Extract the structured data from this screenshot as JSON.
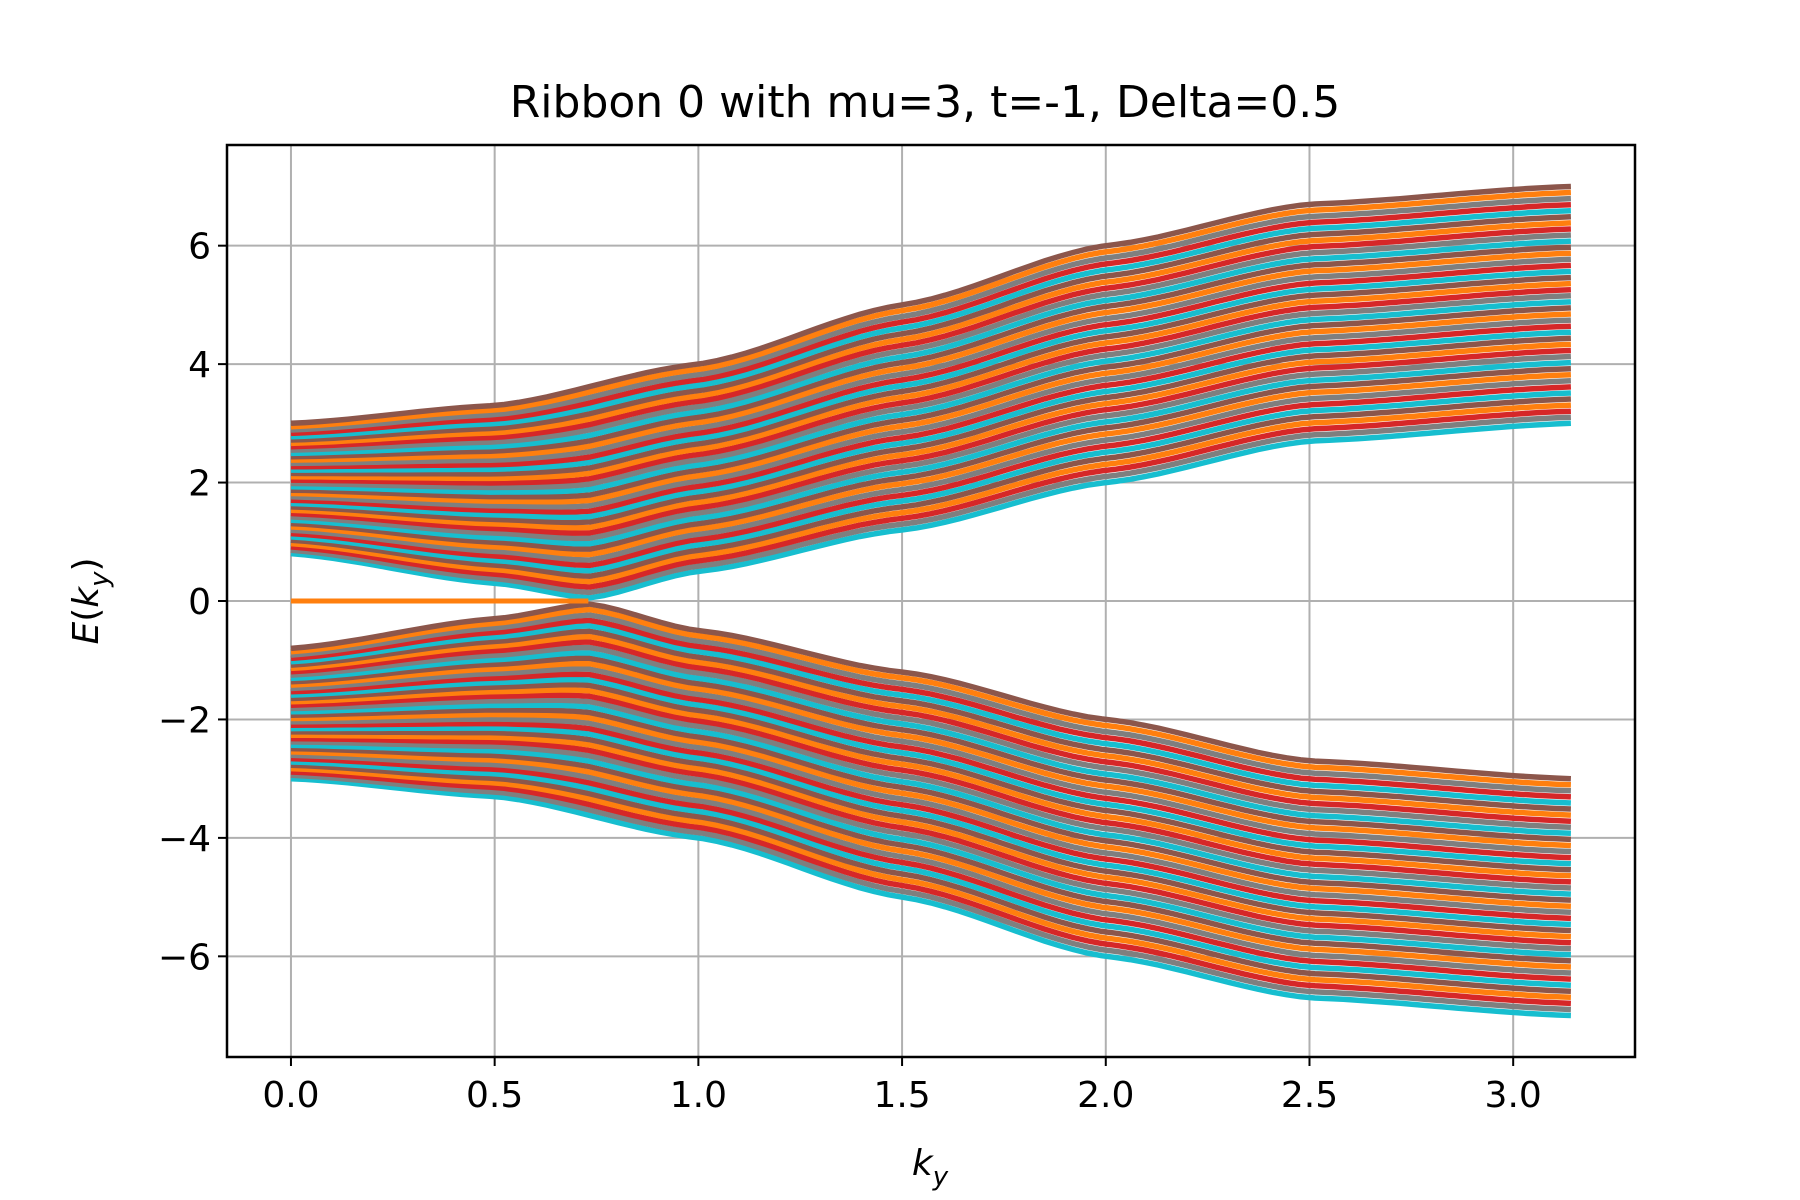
{
  "chart_data": {
    "type": "line",
    "title": "Ribbon 0 with mu=3, t=-1, Delta=0.5",
    "xlabel": "k_y",
    "ylabel": "E(k_y)",
    "xlim": [
      -0.157,
      3.299
    ],
    "ylim": [
      -7.7,
      7.7
    ],
    "x_ticks": [
      0.0,
      0.5,
      1.0,
      1.5,
      2.0,
      2.5,
      3.0
    ],
    "x_tick_labels": [
      "0.0",
      "0.5",
      "1.0",
      "1.5",
      "2.0",
      "2.5",
      "3.0"
    ],
    "y_ticks": [
      -6,
      -4,
      -2,
      0,
      2,
      4,
      6
    ],
    "y_tick_labels": [
      "−6",
      "−4",
      "−2",
      "0",
      "2",
      "4",
      "6"
    ],
    "grid": true,
    "legend": "none",
    "x_range": [
      0.0,
      3.1416
    ],
    "band_count_per_branch": 40,
    "upper_band": {
      "top_edge": [
        [
          0.0,
          3.0
        ],
        [
          0.5,
          3.3
        ],
        [
          1.0,
          4.0
        ],
        [
          1.5,
          5.0
        ],
        [
          2.0,
          6.0
        ],
        [
          2.5,
          6.7
        ],
        [
          3.1416,
          7.0
        ]
      ],
      "bottom_edge": [
        [
          0.0,
          0.8
        ],
        [
          0.5,
          0.3
        ],
        [
          0.73,
          0.05
        ],
        [
          1.0,
          0.5
        ],
        [
          1.5,
          1.2
        ],
        [
          2.0,
          2.0
        ],
        [
          2.5,
          2.7
        ],
        [
          3.1416,
          3.0
        ]
      ]
    },
    "lower_band": {
      "top_edge": [
        [
          0.0,
          -0.8
        ],
        [
          0.5,
          -0.3
        ],
        [
          0.73,
          -0.05
        ],
        [
          1.0,
          -0.5
        ],
        [
          1.5,
          -1.2
        ],
        [
          2.0,
          -2.0
        ],
        [
          2.5,
          -2.7
        ],
        [
          3.1416,
          -3.0
        ]
      ],
      "bottom_edge": [
        [
          0.0,
          -3.0
        ],
        [
          0.5,
          -3.3
        ],
        [
          1.0,
          -4.0
        ],
        [
          1.5,
          -5.0
        ],
        [
          2.0,
          -6.0
        ],
        [
          2.5,
          -6.7
        ],
        [
          3.1416,
          -7.0
        ]
      ]
    },
    "edge_state": {
      "x": [
        0.0,
        0.73
      ],
      "y": [
        0.0,
        0.0
      ],
      "color": "#ff7f0e"
    },
    "series_colors": [
      "#1f77b4",
      "#ff7f0e",
      "#2ca02c",
      "#d62728",
      "#9467bd",
      "#8c564b",
      "#e377c2",
      "#7f7f7f",
      "#bcbd22",
      "#17becf"
    ]
  }
}
